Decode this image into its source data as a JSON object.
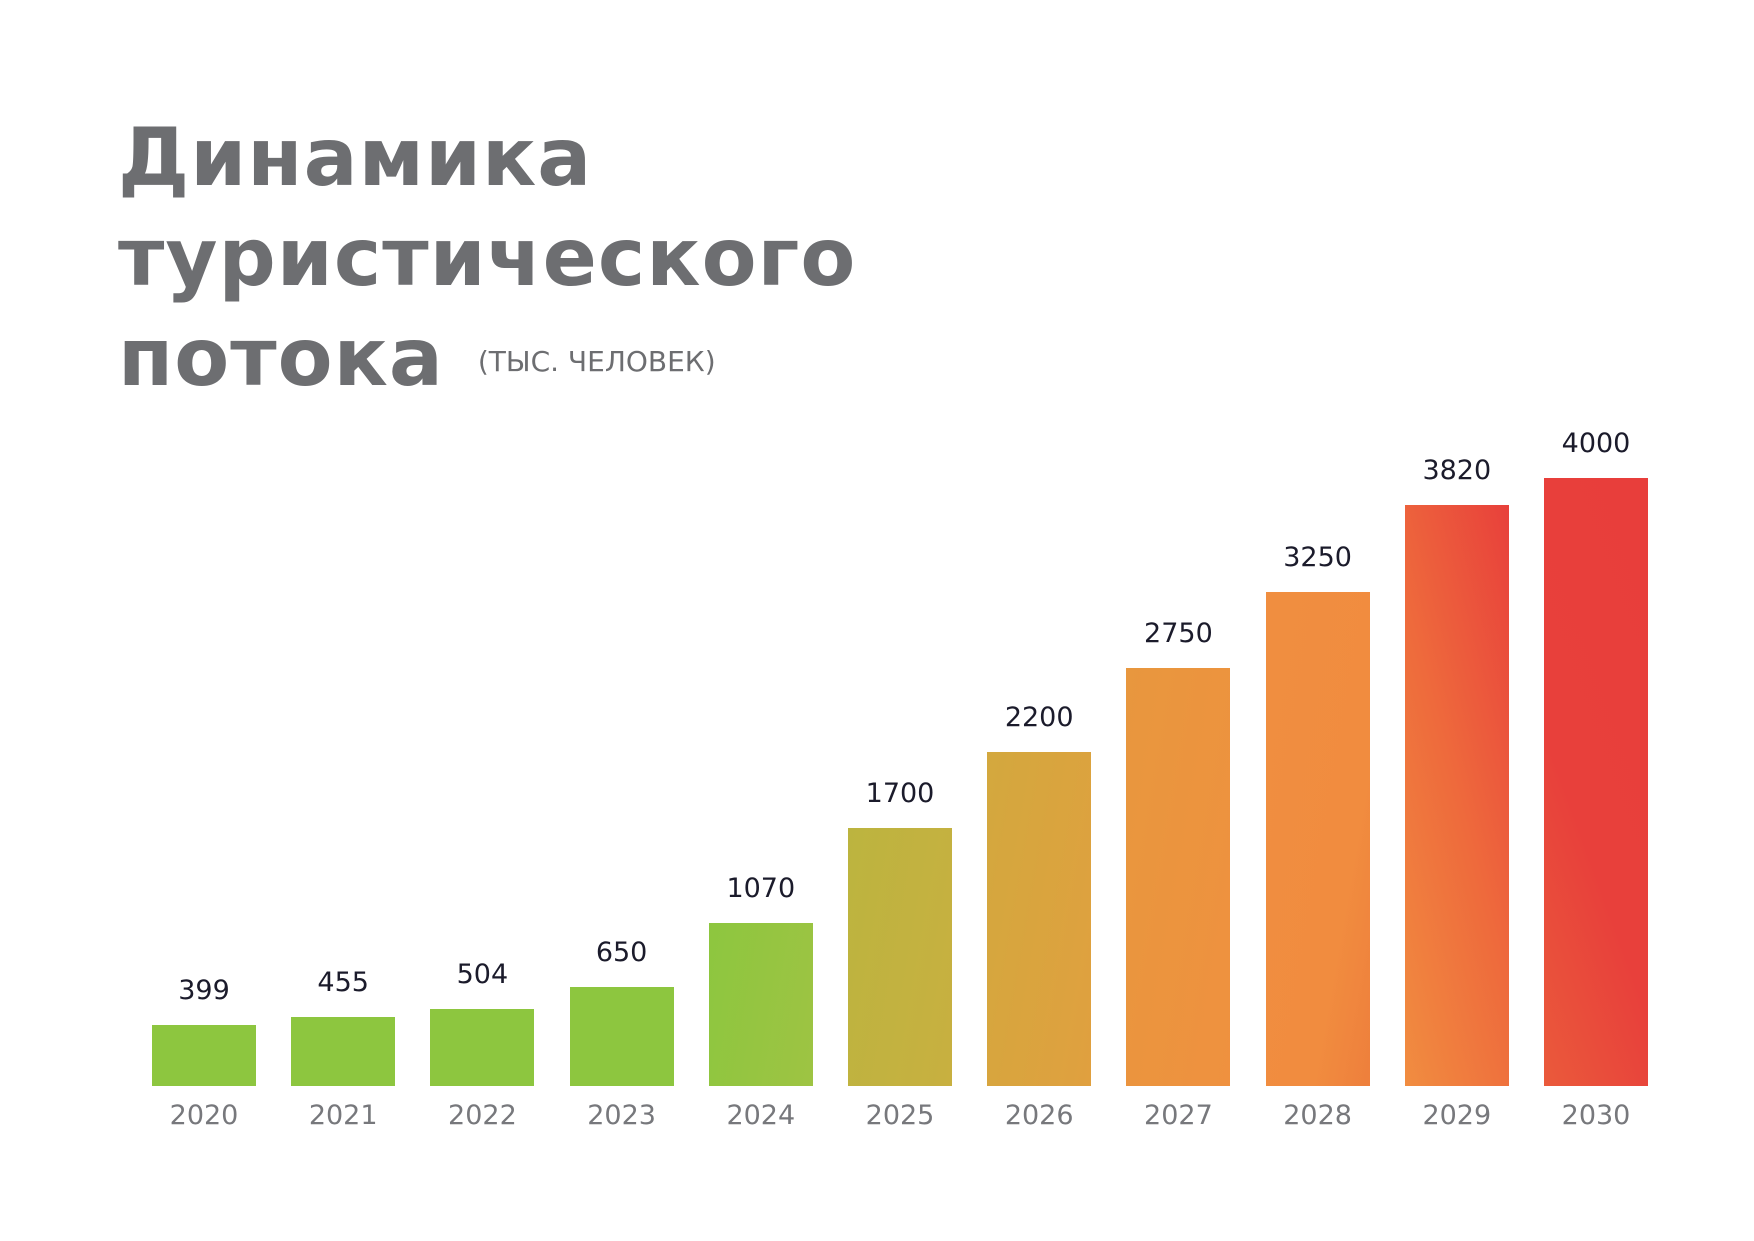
{
  "title": {
    "line1": "Динамика",
    "line2": "туристического",
    "line3": "потока",
    "unit": "(ТЫС. ЧЕЛОВЕК)"
  },
  "chart_data": {
    "type": "bar",
    "title": "Динамика туристического потока",
    "subtitle": "(тыс. человек)",
    "xlabel": "",
    "ylabel": "тыс. человек",
    "categories": [
      "2020",
      "2021",
      "2022",
      "2023",
      "2024",
      "2025",
      "2026",
      "2027",
      "2028",
      "2029",
      "2030"
    ],
    "values": [
      399,
      455,
      504,
      650,
      1070,
      1700,
      2200,
      2750,
      3250,
      3820,
      4000
    ],
    "ylim": [
      0,
      4000
    ],
    "grid": false,
    "legend": "none",
    "data_labels": true,
    "colors": [
      "#8dc63f",
      "#8dc63f",
      "#8dc63f",
      "#8dc63f",
      "#92c540",
      "#c1b33e",
      "#d9a53f",
      "#ea943e",
      "#f08d40",
      "#ee6a3c",
      "#e8403b"
    ]
  }
}
